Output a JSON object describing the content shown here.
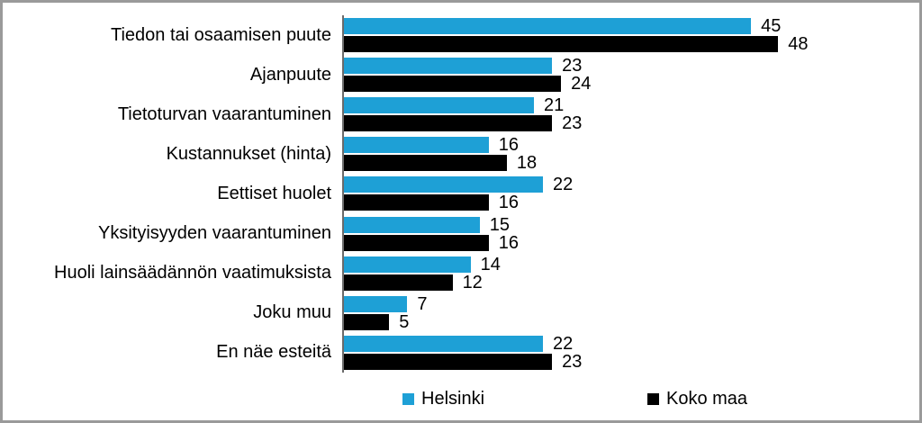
{
  "chart_data": {
    "type": "bar",
    "orientation": "horizontal",
    "title": "",
    "xlabel": "",
    "ylabel": "",
    "categories": [
      "Tiedon tai osaamisen puute",
      "Ajanpuute",
      "Tietoturvan vaarantuminen",
      "Kustannukset (hinta)",
      "Eettiset huolet",
      "Yksityisyyden vaarantuminen",
      "Huoli lainsäädännön vaatimuksista",
      "Joku muu",
      "En näe esteitä"
    ],
    "series": [
      {
        "name": "Helsinki",
        "color": "#1EA0D6",
        "values": [
          45,
          23,
          21,
          16,
          22,
          15,
          14,
          7,
          22
        ]
      },
      {
        "name": "Koko maa",
        "color": "#000000",
        "values": [
          48,
          24,
          23,
          18,
          16,
          16,
          12,
          5,
          23
        ]
      }
    ],
    "xlim": [
      0,
      63
    ],
    "grid": false,
    "legend_position": "bottom",
    "value_labels": true
  },
  "legend": {
    "items": [
      {
        "label": "Helsinki",
        "color": "#1EA0D6"
      },
      {
        "label": "Koko maa",
        "color": "#000000"
      }
    ]
  },
  "colors": {
    "axis_line": "#6b6b6b",
    "frame_border": "#9a9a9a",
    "text": "#000000"
  }
}
